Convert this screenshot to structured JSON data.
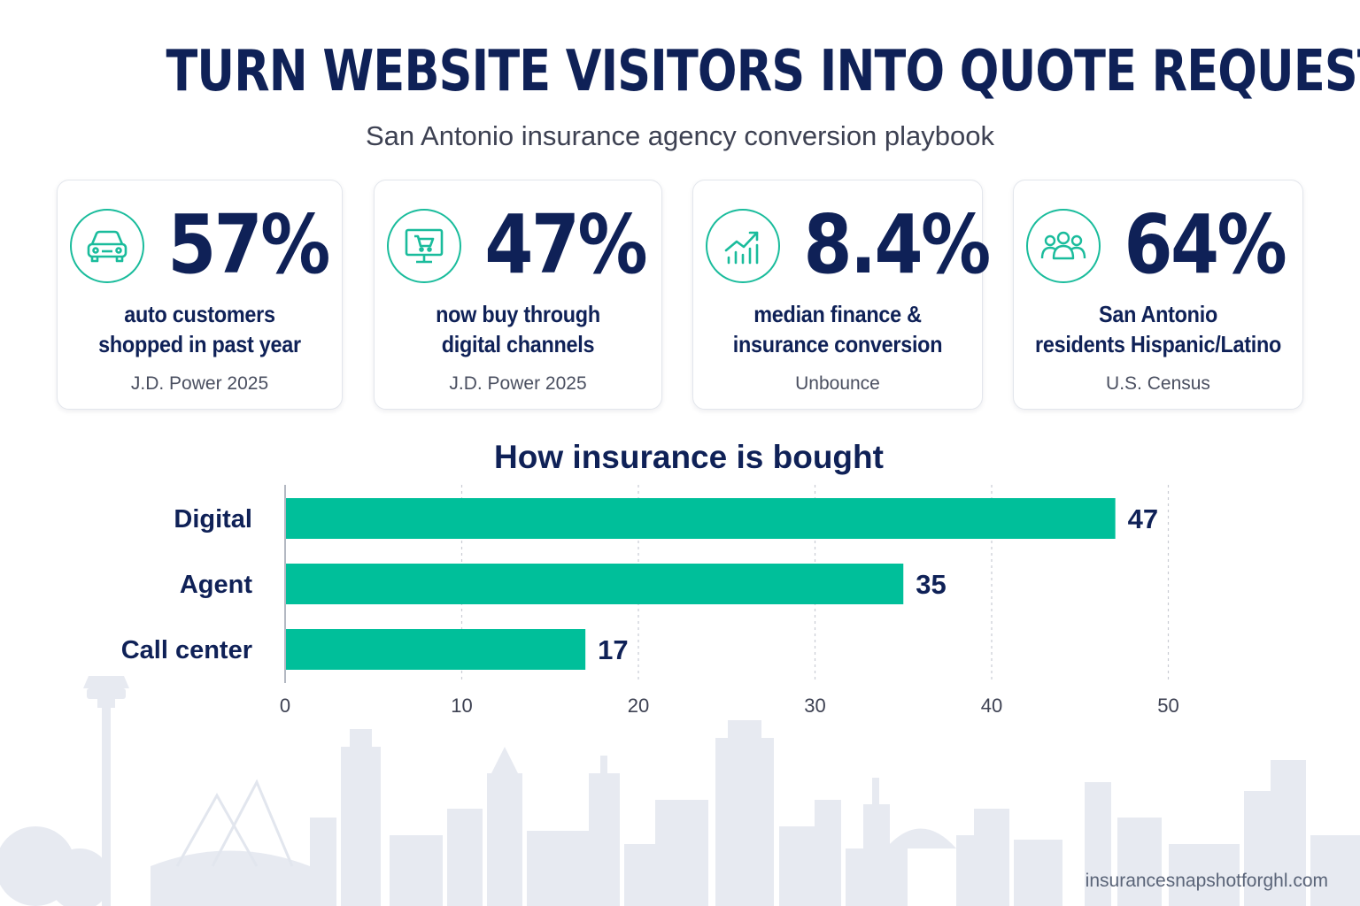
{
  "header": {
    "title": "TURN WEBSITE VISITORS INTO QUOTE REQUESTS",
    "subtitle": "San Antonio insurance agency conversion playbook"
  },
  "stats": [
    {
      "icon": "car-icon",
      "value": "57%",
      "line1": "auto customers",
      "line2": "shopped in past year",
      "source": "J.D. Power 2025"
    },
    {
      "icon": "shopping-cart-monitor-icon",
      "value": "47%",
      "line1": "now buy through",
      "line2": "digital channels",
      "source": "J.D. Power 2025"
    },
    {
      "icon": "growth-chart-icon",
      "value": "8.4%",
      "line1": "median finance &",
      "line2": "insurance conversion",
      "source": "Unbounce"
    },
    {
      "icon": "people-group-icon",
      "value": "64%",
      "line1": "San Antonio",
      "line2": "residents Hispanic/Latino",
      "source": "U.S. Census"
    }
  ],
  "chart_data": {
    "type": "bar",
    "orientation": "horizontal",
    "title": "How insurance is bought",
    "categories": [
      "Digital",
      "Agent",
      "Call center"
    ],
    "values": [
      47,
      35,
      17
    ],
    "xlim": [
      0,
      50
    ],
    "xticks": [
      0,
      10,
      20,
      30,
      40,
      50
    ],
    "grid": "vertical dashed",
    "bar_color": "#00bf9a"
  },
  "footer": {
    "url": "insurancesnapshotforghl.com"
  },
  "colors": {
    "navy": "#0f2157",
    "teal": "#1abc9c",
    "bar": "#00bf9a",
    "skyline": "#e6e9f0"
  }
}
